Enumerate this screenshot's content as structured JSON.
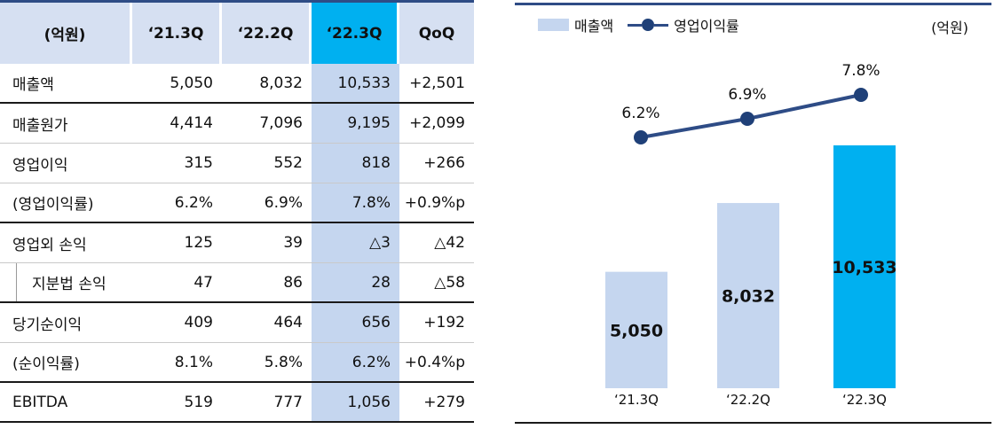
{
  "table": {
    "headers": [
      "(억원)",
      "‘21.3Q",
      "‘22.2Q",
      "‘22.3Q",
      "QoQ"
    ],
    "rows": [
      {
        "label": "매출액",
        "v1": "5,050",
        "v2": "8,032",
        "v3": "10,533",
        "qoq": "+2,501"
      },
      {
        "label": "매출원가",
        "v1": "4,414",
        "v2": "7,096",
        "v3": "9,195",
        "qoq": "+2,099"
      },
      {
        "label": "영업이익",
        "v1": "315",
        "v2": "552",
        "v3": "818",
        "qoq": "+266"
      },
      {
        "label": "(영업이익률)",
        "v1": "6.2%",
        "v2": "6.9%",
        "v3": "7.8%",
        "qoq": "+0.9%p"
      },
      {
        "label": "영업외 손익",
        "v1": "125",
        "v2": "39",
        "v3": "△3",
        "qoq": "△42"
      },
      {
        "label": "지분법 손익",
        "v1": "47",
        "v2": "86",
        "v3": "28",
        "qoq": "△58"
      },
      {
        "label": "당기순이익",
        "v1": "409",
        "v2": "464",
        "v3": "656",
        "qoq": "+192"
      },
      {
        "label": "(순이익률)",
        "v1": "8.1%",
        "v2": "5.8%",
        "v3": "6.2%",
        "qoq": "+0.4%p"
      },
      {
        "label": "EBITDA",
        "v1": "519",
        "v2": "777",
        "v3": "1,056",
        "qoq": "+279"
      }
    ]
  },
  "chart_data": {
    "type": "bar",
    "categories": [
      "‘21.3Q",
      "‘22.2Q",
      "‘22.3Q"
    ],
    "series": [
      {
        "name": "매출액",
        "type": "bar",
        "values": [
          5050,
          8032,
          10533
        ],
        "labels": [
          "5,050",
          "8,032",
          "10,533"
        ]
      },
      {
        "name": "영업이익률",
        "type": "line",
        "values": [
          6.2,
          6.9,
          7.8
        ],
        "labels": [
          "6.2%",
          "6.9%",
          "7.8%"
        ]
      }
    ],
    "unit": "(억원)",
    "colors": {
      "bar": "#c5d6ef",
      "bar_highlight": "#00b0f0",
      "line": "#2e4c86",
      "marker": "#1f4078"
    },
    "highlight_index": 2,
    "legend": "top-left"
  }
}
